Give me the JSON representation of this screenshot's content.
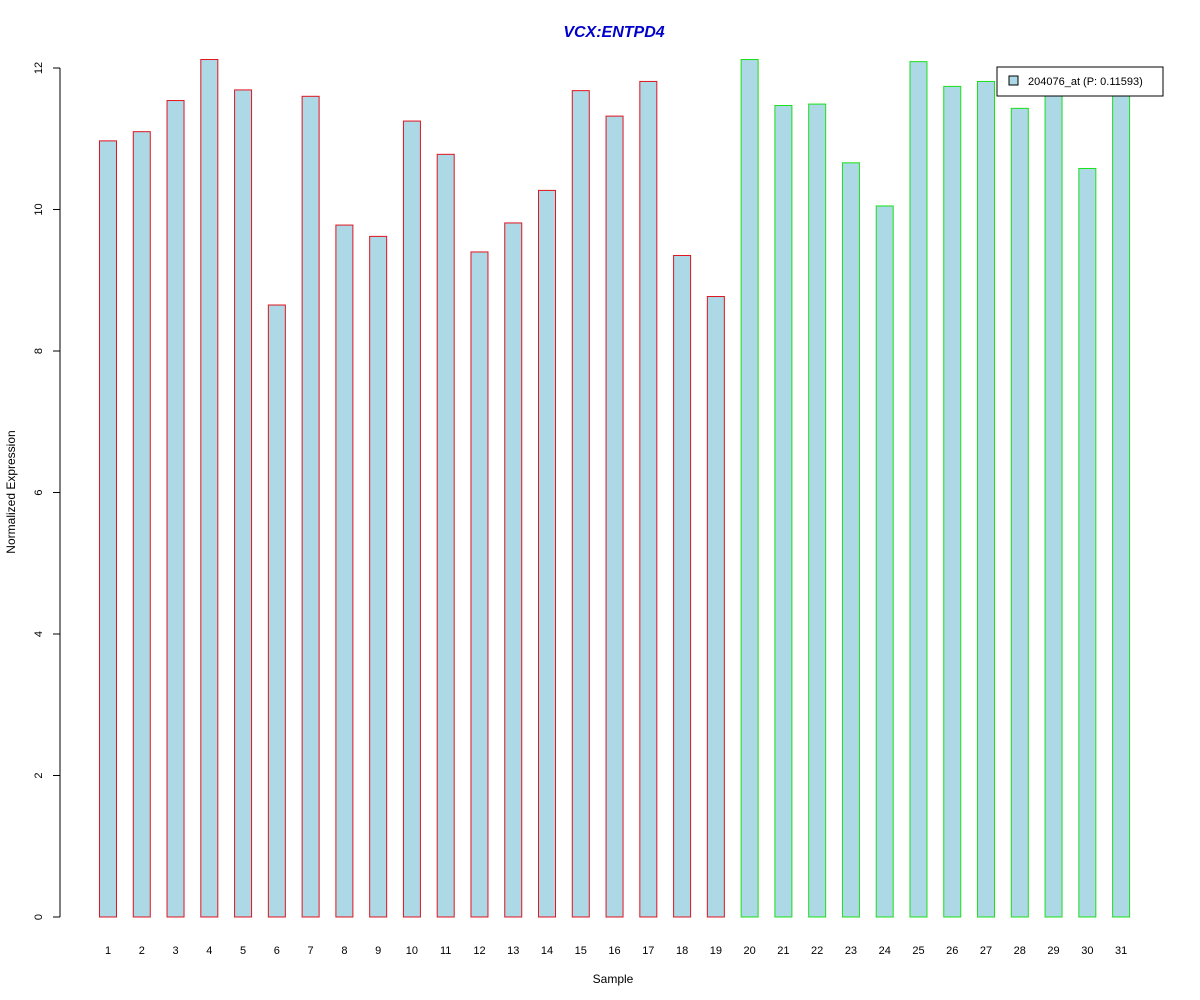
{
  "chart_data": {
    "type": "bar",
    "title": "VCX:ENTPD4",
    "xlabel": "Sample",
    "ylabel": "Normalized Expression",
    "ylim": [
      0,
      12
    ],
    "yticks": [
      0,
      2,
      4,
      6,
      8,
      10,
      12
    ],
    "categories": [
      "1",
      "2",
      "3",
      "4",
      "5",
      "6",
      "7",
      "8",
      "9",
      "10",
      "11",
      "12",
      "13",
      "14",
      "15",
      "16",
      "17",
      "18",
      "19",
      "20",
      "21",
      "22",
      "23",
      "24",
      "25",
      "26",
      "27",
      "28",
      "29",
      "30",
      "31"
    ],
    "series": [
      {
        "name": "204076_at (P: 0.11593)",
        "values": [
          10.97,
          11.1,
          11.54,
          12.12,
          11.69,
          8.65,
          11.6,
          9.78,
          9.62,
          11.25,
          10.78,
          9.4,
          9.81,
          10.27,
          11.68,
          11.32,
          11.81,
          9.35,
          8.77,
          12.12,
          11.47,
          11.49,
          10.66,
          10.05,
          12.09,
          11.74,
          11.81,
          11.43,
          11.64,
          10.58,
          11.65
        ]
      }
    ],
    "groups": [
      {
        "from": 1,
        "to": 19,
        "border_color": "#e0141e"
      },
      {
        "from": 20,
        "to": 31,
        "border_color": "#19e019"
      }
    ],
    "colors": {
      "bar_fill": "#add8e6",
      "title": "#0000cc",
      "axis": "#000000"
    },
    "grid": false,
    "legend_position": "top-right"
  }
}
